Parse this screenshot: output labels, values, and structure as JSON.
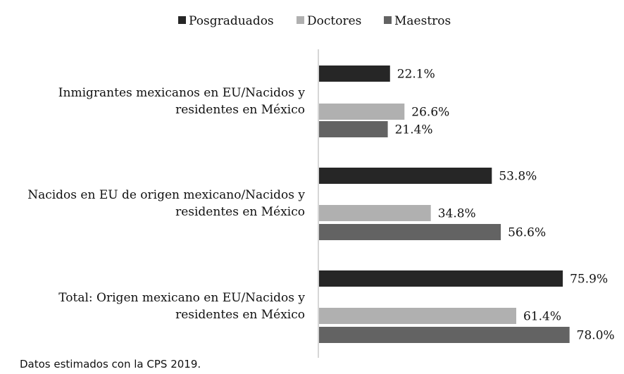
{
  "chart_data": {
    "type": "bar",
    "orientation": "horizontal",
    "categories": [
      [
        "Inmigrantes mexicanos en EU/Nacidos y",
        "residentes en México"
      ],
      [
        "Nacidos en EU de origen mexicano/Nacidos y",
        "residentes en México"
      ],
      [
        "Total: Origen mexicano en EU/Nacidos y",
        "residentes en México"
      ]
    ],
    "series": [
      {
        "name": "Posgraduados",
        "color": "#262626",
        "values": [
          22.1,
          53.8,
          75.9
        ],
        "labels": [
          "22.1%",
          "53.8%",
          "75.9%"
        ]
      },
      {
        "name": "Doctores",
        "color": "#b0b0b0",
        "values": [
          26.6,
          34.8,
          61.4
        ],
        "labels": [
          "26.6%",
          "34.8%",
          "61.4%"
        ]
      },
      {
        "name": "Maestros",
        "color": "#636363",
        "values": [
          21.4,
          56.6,
          78.0
        ],
        "labels": [
          "21.4%",
          "56.6%",
          "78.0%"
        ]
      }
    ],
    "legend_position": "top",
    "grid": false,
    "xaxis_visible": false,
    "unit": "%"
  },
  "footnote": "Datos estimados con la CPS 2019."
}
